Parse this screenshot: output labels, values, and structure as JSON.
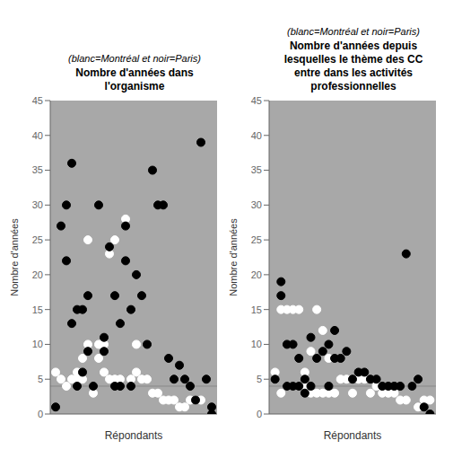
{
  "chart_data": [
    {
      "type": "scatter",
      "title": "Nombre d'années dans\nl'organisme",
      "subtitle": "(blanc=Montréal et noir=Paris)",
      "xlabel": "Répondants",
      "ylabel": "Nombre d'années",
      "xlim": [
        0,
        31
      ],
      "ylim": [
        0,
        45
      ],
      "yticks": [
        0,
        5,
        10,
        15,
        20,
        25,
        30,
        35,
        40,
        45
      ],
      "hline": 4,
      "grid": false,
      "tick_labels": "y",
      "marker": "circle",
      "series": [
        {
          "color": "white",
          "x": [
            1,
            2,
            3,
            4,
            5,
            5,
            6,
            6,
            7,
            7,
            8,
            9,
            9,
            10,
            10,
            11,
            11,
            12,
            12,
            13,
            14,
            15,
            16,
            16,
            17,
            18,
            19,
            20,
            21,
            22,
            23,
            24,
            25,
            26,
            27,
            28
          ],
          "values": [
            6,
            5,
            4,
            5,
            6,
            5,
            8,
            5,
            25,
            10,
            3,
            8,
            10,
            10,
            6,
            23,
            5,
            25,
            5,
            5,
            28,
            5,
            10,
            6,
            5,
            5,
            3,
            3,
            2,
            2,
            2,
            1,
            1,
            2,
            2,
            2
          ]
        },
        {
          "color": "black",
          "x": [
            1,
            2,
            3,
            3,
            4,
            4,
            5,
            5,
            6,
            6,
            7,
            7,
            8,
            9,
            10,
            10,
            11,
            12,
            12,
            13,
            13,
            14,
            14,
            15,
            15,
            16,
            17,
            18,
            19,
            20,
            21,
            22,
            23,
            24,
            25,
            26,
            27,
            28,
            29,
            30,
            30
          ],
          "values": [
            1,
            27,
            30,
            22,
            36,
            13,
            15,
            4,
            15,
            6,
            17,
            9,
            4,
            30,
            11,
            9,
            24,
            17,
            4,
            13,
            4,
            27,
            22,
            15,
            4,
            20,
            17,
            10,
            35,
            30,
            30,
            8,
            5,
            7,
            5,
            4,
            2,
            39,
            5,
            1,
            0
          ]
        }
      ]
    },
    {
      "type": "scatter",
      "title": "Nombre d'années depuis\nlesquelles le thème des CC\nentre dans les activités\nprofessionnelles",
      "subtitle": "(blanc=Montréal et noir=Paris)",
      "xlabel": "Répondants",
      "ylabel": "Nombre d'années",
      "xlim": [
        0,
        28
      ],
      "ylim": [
        0,
        45
      ],
      "yticks": [
        0,
        5,
        10,
        15,
        20,
        25,
        30,
        35,
        40,
        45
      ],
      "hline": 4,
      "grid": false,
      "tick_labels": "y",
      "marker": "circle",
      "series": [
        {
          "color": "white",
          "x": [
            1,
            2,
            2,
            3,
            3,
            4,
            4,
            5,
            5,
            6,
            6,
            7,
            7,
            8,
            8,
            9,
            9,
            10,
            10,
            11,
            12,
            13,
            14,
            15,
            16,
            17,
            18,
            19,
            20,
            21,
            22,
            23,
            24,
            25,
            26,
            27
          ],
          "values": [
            6,
            15,
            3,
            15,
            4,
            15,
            4,
            15,
            4,
            6,
            4,
            9,
            3,
            15,
            3,
            12,
            3,
            8,
            3,
            3,
            5,
            5,
            3,
            5,
            5,
            3,
            4,
            3,
            3,
            3,
            2,
            2,
            4,
            1,
            2,
            2
          ]
        },
        {
          "color": "black",
          "x": [
            1,
            2,
            2,
            3,
            3,
            4,
            4,
            5,
            5,
            6,
            6,
            7,
            7,
            8,
            9,
            10,
            10,
            11,
            11,
            12,
            13,
            14,
            15,
            16,
            17,
            18,
            19,
            20,
            21,
            22,
            23,
            24,
            25,
            26,
            27
          ],
          "values": [
            5,
            19,
            17,
            10,
            4,
            10,
            4,
            8,
            4,
            5,
            3,
            11,
            4,
            8,
            9,
            10,
            4,
            12,
            8,
            8,
            9,
            5,
            6,
            6,
            5,
            5,
            4,
            4,
            4,
            4,
            23,
            4,
            5,
            1,
            0
          ]
        }
      ]
    }
  ]
}
